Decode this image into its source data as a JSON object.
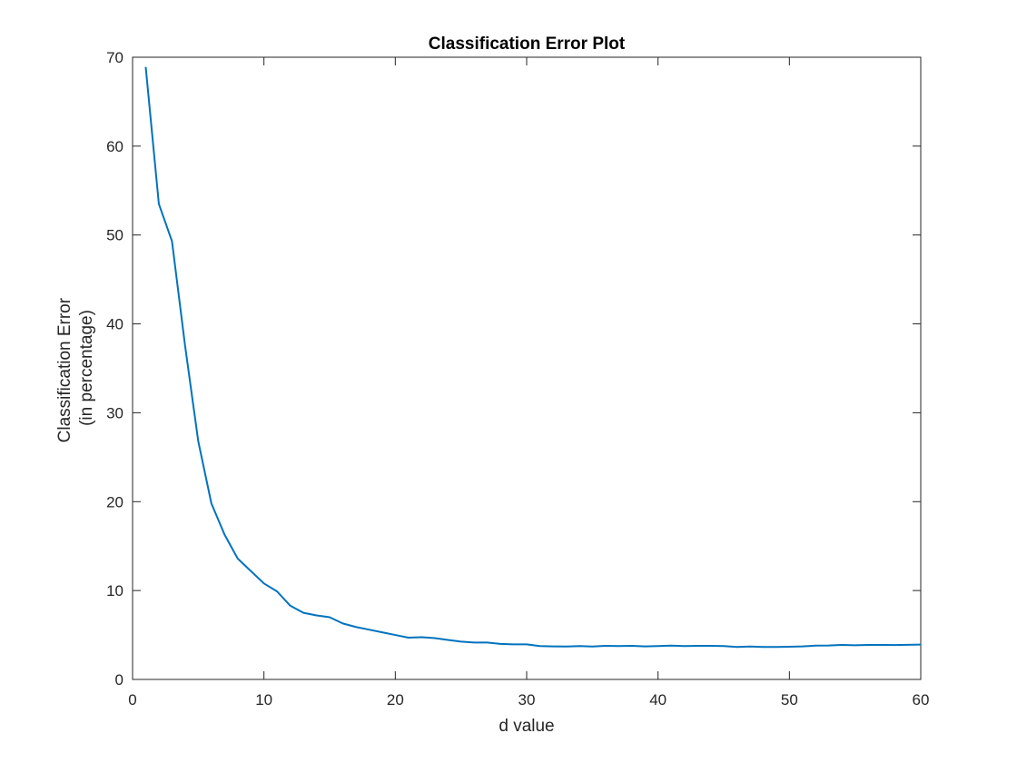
{
  "colors": {
    "line": "#0072BD",
    "axes": "#262626",
    "background": "#ffffff"
  },
  "chart_data": {
    "type": "line",
    "title": "Classification Error Plot",
    "xlabel": "d value",
    "ylabel_lines": [
      "Classification Error",
      "(in percentage)"
    ],
    "xlim": [
      0,
      60
    ],
    "ylim": [
      0,
      70
    ],
    "xticks": [
      0,
      10,
      20,
      30,
      40,
      50,
      60
    ],
    "yticks": [
      0,
      10,
      20,
      30,
      40,
      50,
      60,
      70
    ],
    "grid": false,
    "box": true,
    "series": [
      {
        "x": [
          1,
          2,
          3,
          4,
          5,
          6,
          7,
          8,
          9,
          10,
          11,
          12,
          13,
          14,
          15,
          16,
          17,
          18,
          19,
          20,
          21,
          22,
          23,
          24,
          25,
          26,
          27,
          28,
          29,
          30,
          31,
          32,
          33,
          34,
          35,
          36,
          37,
          38,
          39,
          40,
          41,
          42,
          43,
          44,
          45,
          46,
          47,
          48,
          49,
          50,
          51,
          52,
          53,
          54,
          55,
          56,
          57,
          58,
          59,
          60
        ],
        "y": [
          68.9,
          53.5,
          49.3,
          37.5,
          26.8,
          19.8,
          16.3,
          13.6,
          12.2,
          10.8,
          9.9,
          8.3,
          7.5,
          7.2,
          7.0,
          6.3,
          5.9,
          5.6,
          5.3,
          5.0,
          4.7,
          4.75,
          4.65,
          4.45,
          4.25,
          4.15,
          4.15,
          4.0,
          3.95,
          3.95,
          3.75,
          3.72,
          3.7,
          3.75,
          3.7,
          3.78,
          3.75,
          3.78,
          3.72,
          3.75,
          3.8,
          3.75,
          3.78,
          3.78,
          3.75,
          3.65,
          3.7,
          3.65,
          3.65,
          3.68,
          3.72,
          3.8,
          3.82,
          3.88,
          3.85,
          3.88,
          3.88,
          3.87,
          3.9,
          3.92
        ]
      }
    ]
  }
}
